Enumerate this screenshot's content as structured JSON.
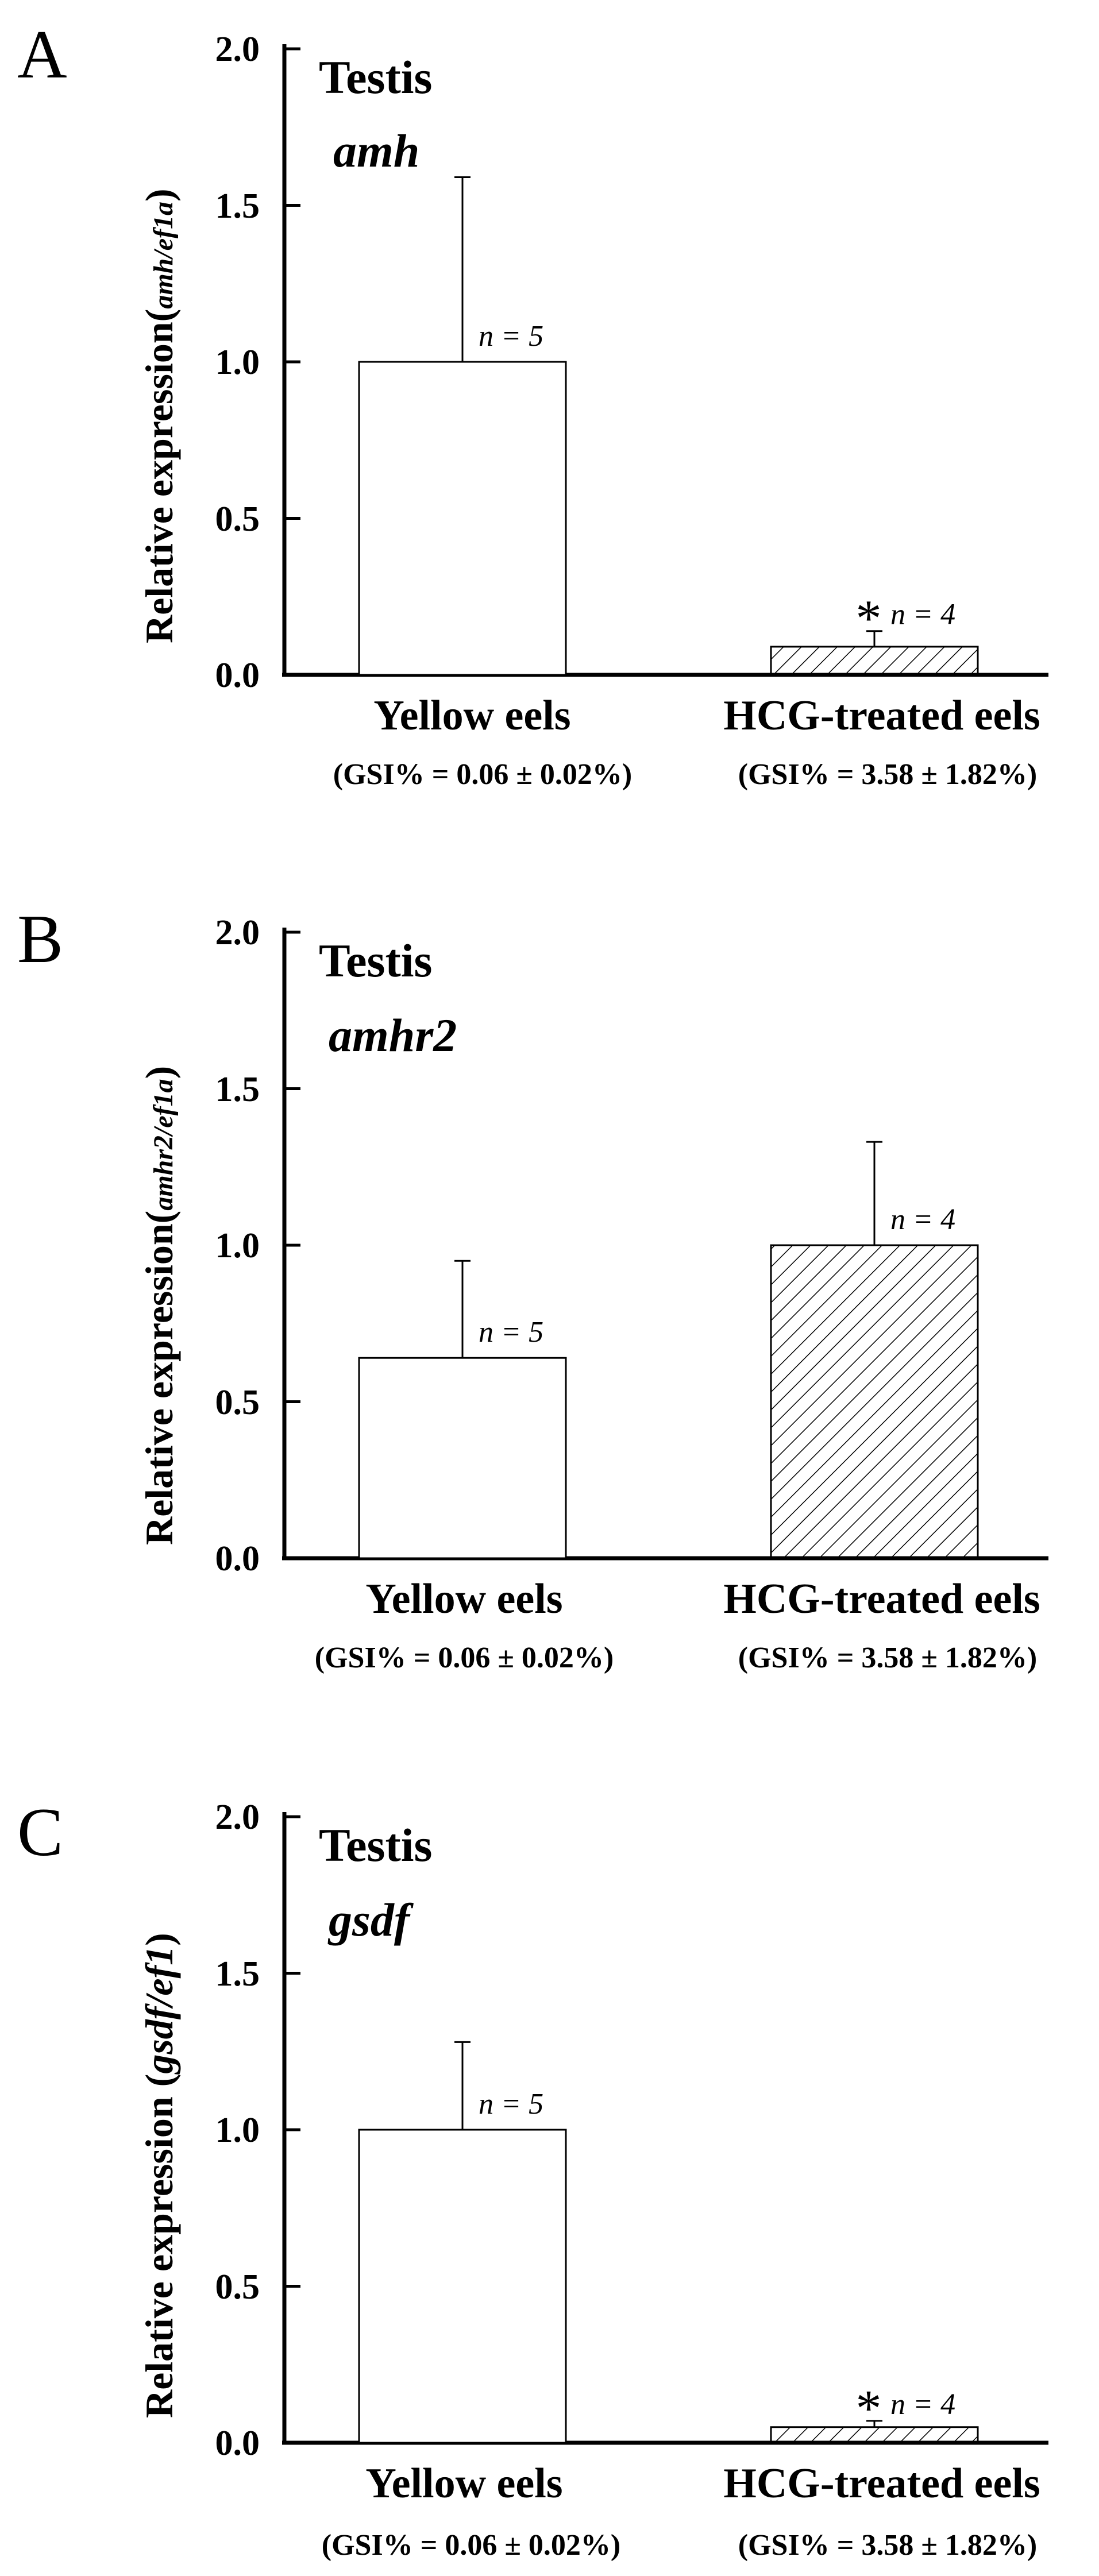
{
  "chart_data": [
    {
      "type": "bar",
      "panel_label": "A",
      "title": "Testis",
      "gene": "amh",
      "ylabel_prefix": "Relative expression(",
      "ylabel_italic": "amh/ef1a",
      "ylabel_suffix": ")",
      "ylim": [
        0,
        2.0
      ],
      "yticks": [
        "0.0",
        "0.5",
        "1.0",
        "1.5",
        "2.0"
      ],
      "categories": [
        "Yellow eels",
        "HCG-treated eels"
      ],
      "gsi": [
        "(GSI% = 0.06 ± 0.02%)",
        "(GSI% = 3.58 ± 1.82%)"
      ],
      "values": [
        1.0,
        0.09
      ],
      "errors": [
        0.59,
        0.05
      ],
      "n_labels": [
        "n = 5",
        "n = 4"
      ],
      "significance": [
        "",
        "*"
      ]
    },
    {
      "type": "bar",
      "panel_label": "B",
      "title": "Testis",
      "gene": "amhr2",
      "ylabel_prefix": "Relative expression(",
      "ylabel_italic": "amhr2/ef1a",
      "ylabel_suffix": ")",
      "ylim": [
        0,
        2.0
      ],
      "yticks": [
        "0.0",
        "0.5",
        "1.0",
        "1.5",
        "2.0"
      ],
      "categories": [
        "Yellow eels",
        "HCG-treated eels"
      ],
      "gsi": [
        "(GSI% = 0.06 ± 0.02%)",
        "(GSI% = 3.58 ± 1.82%)"
      ],
      "values": [
        0.64,
        1.0
      ],
      "errors": [
        0.31,
        0.33
      ],
      "n_labels": [
        "n = 5",
        "n = 4"
      ],
      "significance": [
        "",
        ""
      ]
    },
    {
      "type": "bar",
      "panel_label": "C",
      "title": "Testis",
      "gene": "gsdf",
      "ylabel_prefix": "Relative expression (",
      "ylabel_italic": "gsdf/ef1",
      "ylabel_suffix": ")",
      "ylim": [
        0,
        2.0
      ],
      "yticks": [
        "0.0",
        "0.5",
        "1.0",
        "1.5",
        "2.0"
      ],
      "categories": [
        "Yellow eels",
        "HCG-treated eels"
      ],
      "gsi": [
        "(GSI% = 0.06 ± 0.02%)",
        "(GSI% = 3.58 ± 1.82%)"
      ],
      "values": [
        1.0,
        0.05
      ],
      "errors": [
        0.28,
        0.02
      ],
      "n_labels": [
        "n = 5",
        "n = 4"
      ],
      "significance": [
        "",
        "*"
      ]
    }
  ]
}
